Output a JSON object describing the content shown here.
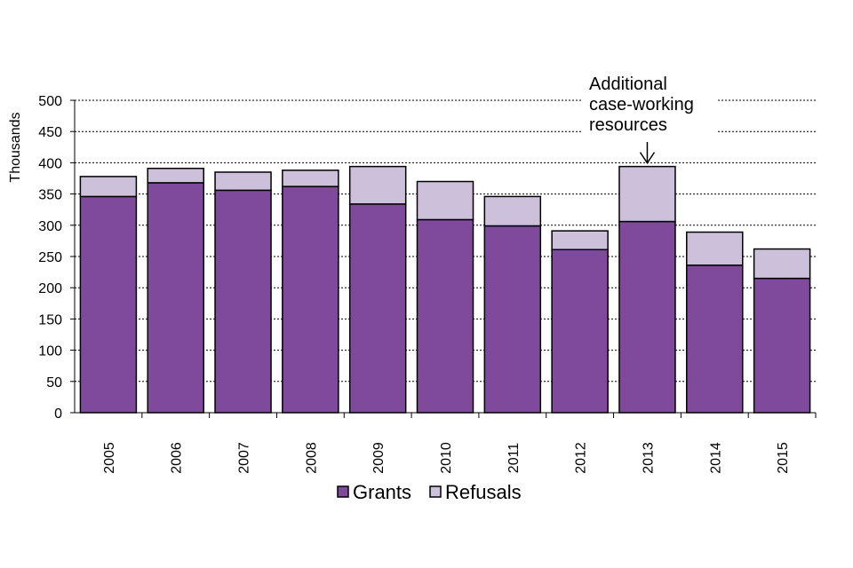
{
  "chart_data": {
    "type": "bar",
    "stacked": true,
    "categories": [
      "2005",
      "2006",
      "2007",
      "2008",
      "2009",
      "2010",
      "2011",
      "2012",
      "2013",
      "2014",
      "2015"
    ],
    "series": [
      {
        "name": "Grants",
        "color": "#7f4a9b",
        "values": [
          346,
          368,
          356,
          362,
          334,
          309,
          299,
          261,
          306,
          236,
          215
        ]
      },
      {
        "name": "Refusals",
        "color": "#cdc0da",
        "values": [
          32,
          23,
          29,
          26,
          60,
          61,
          47,
          30,
          88,
          53,
          47
        ]
      }
    ],
    "ylabel": "Thousands",
    "ylim": [
      0,
      500
    ],
    "yticks": [
      0,
      50,
      100,
      150,
      200,
      250,
      300,
      350,
      400,
      450,
      500
    ],
    "grid": "dashed-horizontal",
    "legend": "bottom-center",
    "annotation": {
      "lines": [
        "Additional",
        "case-working",
        "resources"
      ],
      "category": "2013"
    }
  }
}
